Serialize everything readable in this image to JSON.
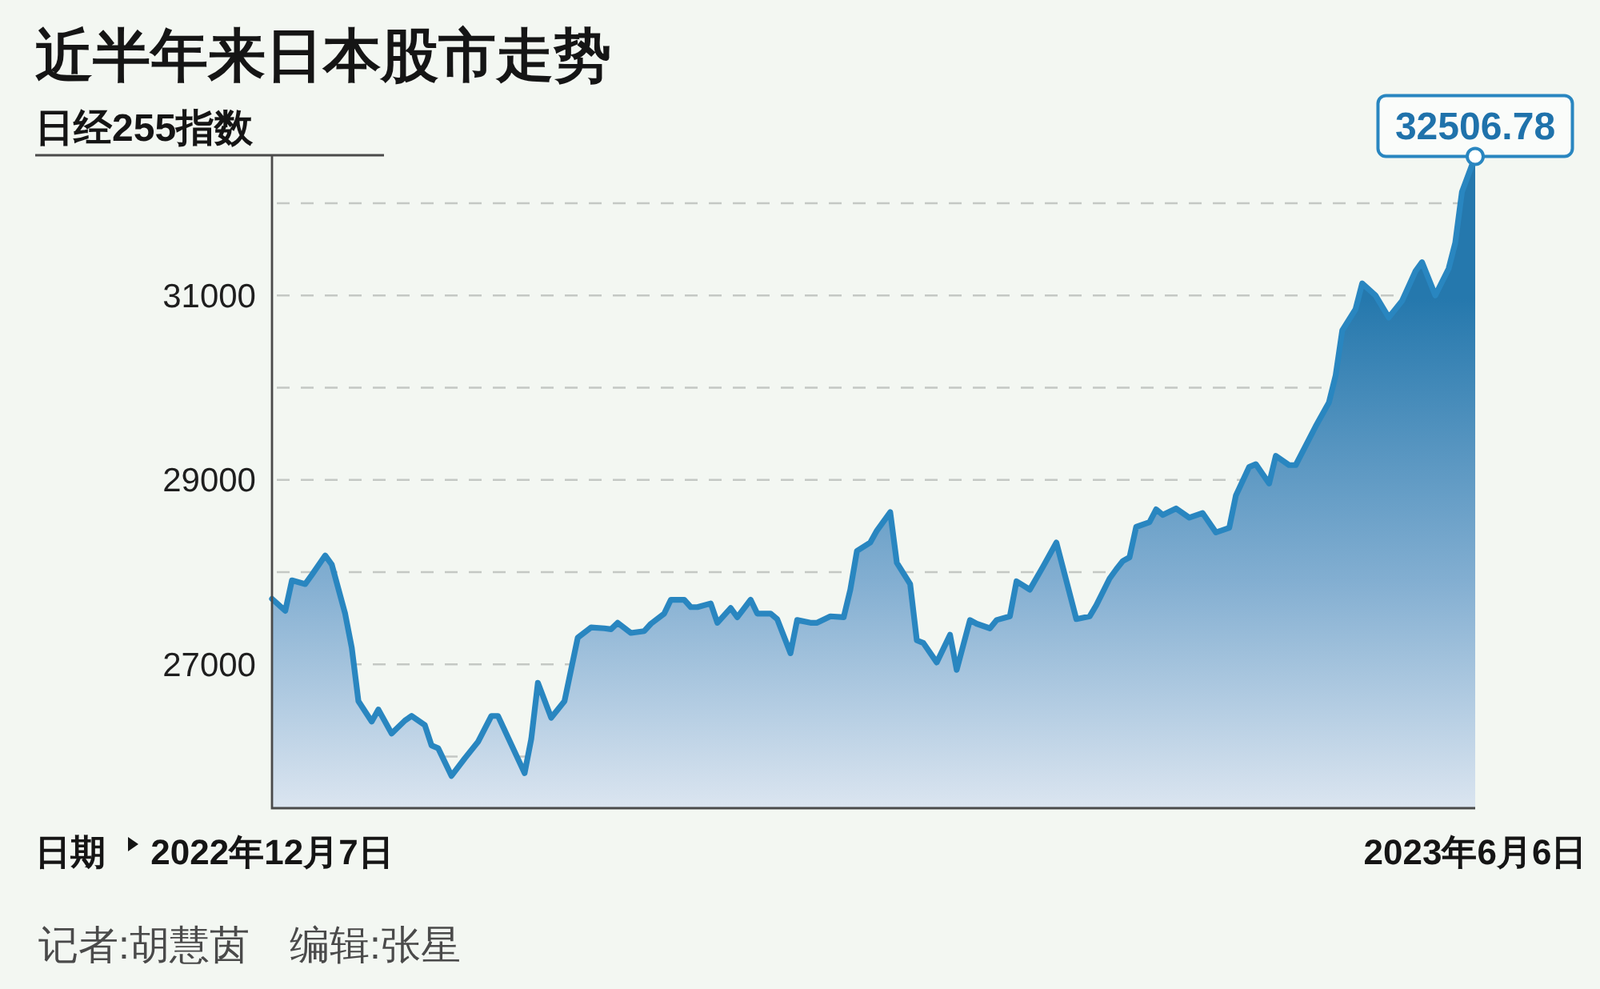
{
  "chart_data": {
    "type": "area",
    "title": "近半年来日本股市走势",
    "ylabel": "日经255指数",
    "xlabel": "日期",
    "x": [
      "2022-12-07",
      "2022-12-09",
      "2022-12-10",
      "2022-12-12",
      "2022-12-13",
      "2022-12-15",
      "2022-12-16",
      "2022-12-18",
      "2022-12-19",
      "2022-12-20",
      "2022-12-22",
      "2022-12-23",
      "2022-12-25",
      "2022-12-27",
      "2022-12-28",
      "2022-12-30",
      "2022-12-31",
      "2023-01-01",
      "2023-01-03",
      "2023-01-05",
      "2023-01-07",
      "2023-01-09",
      "2023-01-10",
      "2023-01-14",
      "2023-01-15",
      "2023-01-16",
      "2023-01-18",
      "2023-01-20",
      "2023-01-22",
      "2023-01-24",
      "2023-01-26",
      "2023-01-27",
      "2023-01-28",
      "2023-01-30",
      "2023-02-01",
      "2023-02-02",
      "2023-02-04",
      "2023-02-05",
      "2023-02-07",
      "2023-02-08",
      "2023-02-09",
      "2023-02-11",
      "2023-02-12",
      "2023-02-14",
      "2023-02-15",
      "2023-02-17",
      "2023-02-18",
      "2023-02-20",
      "2023-02-21",
      "2023-02-23",
      "2023-02-24",
      "2023-02-26",
      "2023-02-27",
      "2023-03-01",
      "2023-03-03",
      "2023-03-04",
      "2023-03-05",
      "2023-03-07",
      "2023-03-08",
      "2023-03-10",
      "2023-03-11",
      "2023-03-13",
      "2023-03-14",
      "2023-03-15",
      "2023-03-17",
      "2023-03-19",
      "2023-03-20",
      "2023-03-22",
      "2023-03-23",
      "2023-03-25",
      "2023-03-26",
      "2023-03-28",
      "2023-03-29",
      "2023-03-31",
      "2023-04-02",
      "2023-04-03",
      "2023-04-04",
      "2023-04-07",
      "2023-04-09",
      "2023-04-10",
      "2023-04-12",
      "2023-04-13",
      "2023-04-14",
      "2023-04-15",
      "2023-04-16",
      "2023-04-18",
      "2023-04-19",
      "2023-04-20",
      "2023-04-22",
      "2023-04-24",
      "2023-04-26",
      "2023-04-28",
      "2023-04-30",
      "2023-05-01",
      "2023-05-03",
      "2023-05-04",
      "2023-05-06",
      "2023-05-07",
      "2023-05-09",
      "2023-05-10",
      "2023-05-13",
      "2023-05-15",
      "2023-05-16",
      "2023-05-17",
      "2023-05-19",
      "2023-05-20",
      "2023-05-22",
      "2023-05-24",
      "2023-05-26",
      "2023-05-28",
      "2023-05-29",
      "2023-05-31",
      "2023-06-02",
      "2023-06-03",
      "2023-06-04",
      "2023-06-06"
    ],
    "series": [
      {
        "color": "#2986c0",
        "values": [
          27710,
          27580,
          27910,
          27870,
          27970,
          28180,
          28080,
          27550,
          27180,
          26600,
          26380,
          26510,
          26250,
          26390,
          26440,
          26340,
          26120,
          26090,
          25790,
          25980,
          26160,
          26440,
          26440,
          25820,
          26190,
          26800,
          26420,
          26600,
          27290,
          27400,
          27390,
          27380,
          27450,
          27340,
          27360,
          27440,
          27550,
          27700,
          27700,
          27620,
          27620,
          27660,
          27450,
          27610,
          27510,
          27700,
          27550,
          27550,
          27490,
          27120,
          27480,
          27450,
          27450,
          27520,
          27510,
          27810,
          28230,
          28320,
          28450,
          28650,
          28100,
          27870,
          27260,
          27230,
          27020,
          27320,
          26940,
          27480,
          27440,
          27390,
          27480,
          27520,
          27900,
          27810,
          28060,
          28190,
          28320,
          27490,
          27520,
          27640,
          27930,
          28030,
          28120,
          28160,
          28490,
          28540,
          28680,
          28620,
          28690,
          28590,
          28640,
          28430,
          28480,
          28830,
          29140,
          29170,
          28960,
          29260,
          29160,
          29160,
          29580,
          29840,
          30130,
          30620,
          30850,
          31130,
          31000,
          30760,
          30940,
          31260,
          31360,
          31000,
          31290,
          31570,
          32120,
          32506.78
        ]
      }
    ],
    "xlim": [
      "2022-12-07",
      "2023-06-06"
    ],
    "xticks": [
      {
        "value": "2022-12-07",
        "label": "2022年12月7日"
      },
      {
        "value": "2023-06-06",
        "label": "2023年6月6日"
      }
    ],
    "ylim": [
      25440,
      32520
    ],
    "yticks": [
      {
        "value": 26000,
        "label": null
      },
      27000,
      {
        "value": 28000,
        "label": null
      },
      29000,
      {
        "value": 30000,
        "label": null
      },
      31000,
      {
        "value": 32000,
        "label": null
      }
    ],
    "grid": "y",
    "annotations": [
      "记者:胡慧茵　编辑:张星",
      {
        "text": "32506.78",
        "x": "2023-06-06",
        "y": 32506.78
      }
    ]
  }
}
